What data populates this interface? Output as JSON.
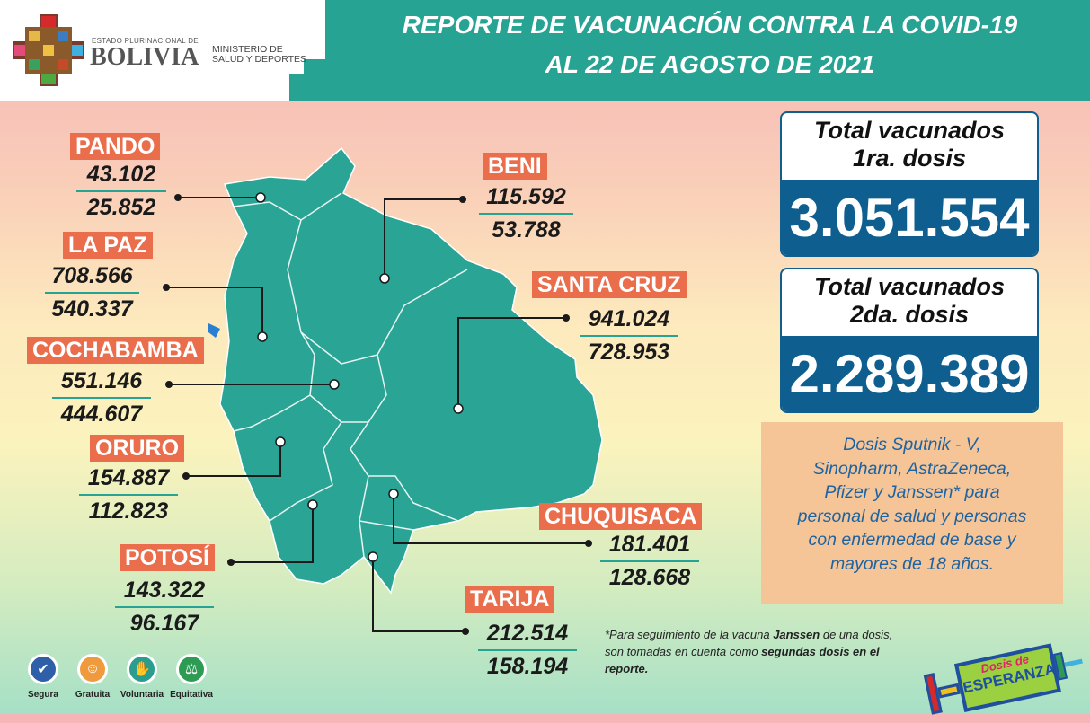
{
  "header": {
    "logo_top": "ESTADO PLURINACIONAL DE",
    "logo_main": "BOLIVIA",
    "ministry_line1": "MINISTERIO DE",
    "ministry_line2": "SALUD Y DEPORTES",
    "title_line1": "REPORTE DE VACUNACIÓN CONTRA LA COVID-19",
    "title_line2": "AL 22 DE AGOSTO DE 2021"
  },
  "departments": [
    {
      "name": "PANDO",
      "dose1": "43.102",
      "dose2": "25.852"
    },
    {
      "name": "LA PAZ",
      "dose1": "708.566",
      "dose2": "540.337"
    },
    {
      "name": "COCHABAMBA",
      "dose1": "551.146",
      "dose2": "444.607"
    },
    {
      "name": "ORURO",
      "dose1": "154.887",
      "dose2": "112.823"
    },
    {
      "name": "POTOSÍ",
      "dose1": "143.322",
      "dose2": "96.167"
    },
    {
      "name": "BENI",
      "dose1": "115.592",
      "dose2": "53.788"
    },
    {
      "name": "SANTA CRUZ",
      "dose1": "941.024",
      "dose2": "728.953"
    },
    {
      "name": "CHUQUISACA",
      "dose1": "181.401",
      "dose2": "128.668"
    },
    {
      "name": "TARIJA",
      "dose1": "212.514",
      "dose2": "158.194"
    }
  ],
  "totals": [
    {
      "label_line1": "Total vacunados",
      "label_line2": "1ra. dosis",
      "value": "3.051.554"
    },
    {
      "label_line1": "Total vacunados",
      "label_line2": "2da. dosis",
      "value": "2.289.389"
    }
  ],
  "info": [
    "Dosis Sputnik - V,",
    "Sinopharm, AstraZeneca,",
    "Pfizer y Janssen* para",
    "personal de salud y personas",
    "con enfermedad de base y",
    "mayores de 18 años."
  ],
  "note": {
    "p1": "*Para seguimiento de la vacuna ",
    "b1": "Janssen",
    "p2": " de una dosis,",
    "p3": " son tomadas en cuenta como ",
    "b2": "segundas dosis en el",
    "b3": " reporte."
  },
  "badges": [
    {
      "label": "Segura",
      "icon": "shield-check-icon",
      "color": "#2f5fa8"
    },
    {
      "label": "Gratuita",
      "icon": "smiley-icon",
      "color": "#f09a3e"
    },
    {
      "label": "Voluntaria",
      "icon": "raised-hand-icon",
      "color": "#2a9d8f"
    },
    {
      "label": "Equitativa",
      "icon": "scales-icon",
      "color": "#2e9b55"
    }
  ],
  "campaign": {
    "line1": "Dosis de",
    "line2": "ESPERANZA"
  },
  "colors": {
    "teal": "#27a394",
    "orange": "#ea6d4c",
    "navy": "#0e5f8f",
    "peach": "#f5c597"
  }
}
